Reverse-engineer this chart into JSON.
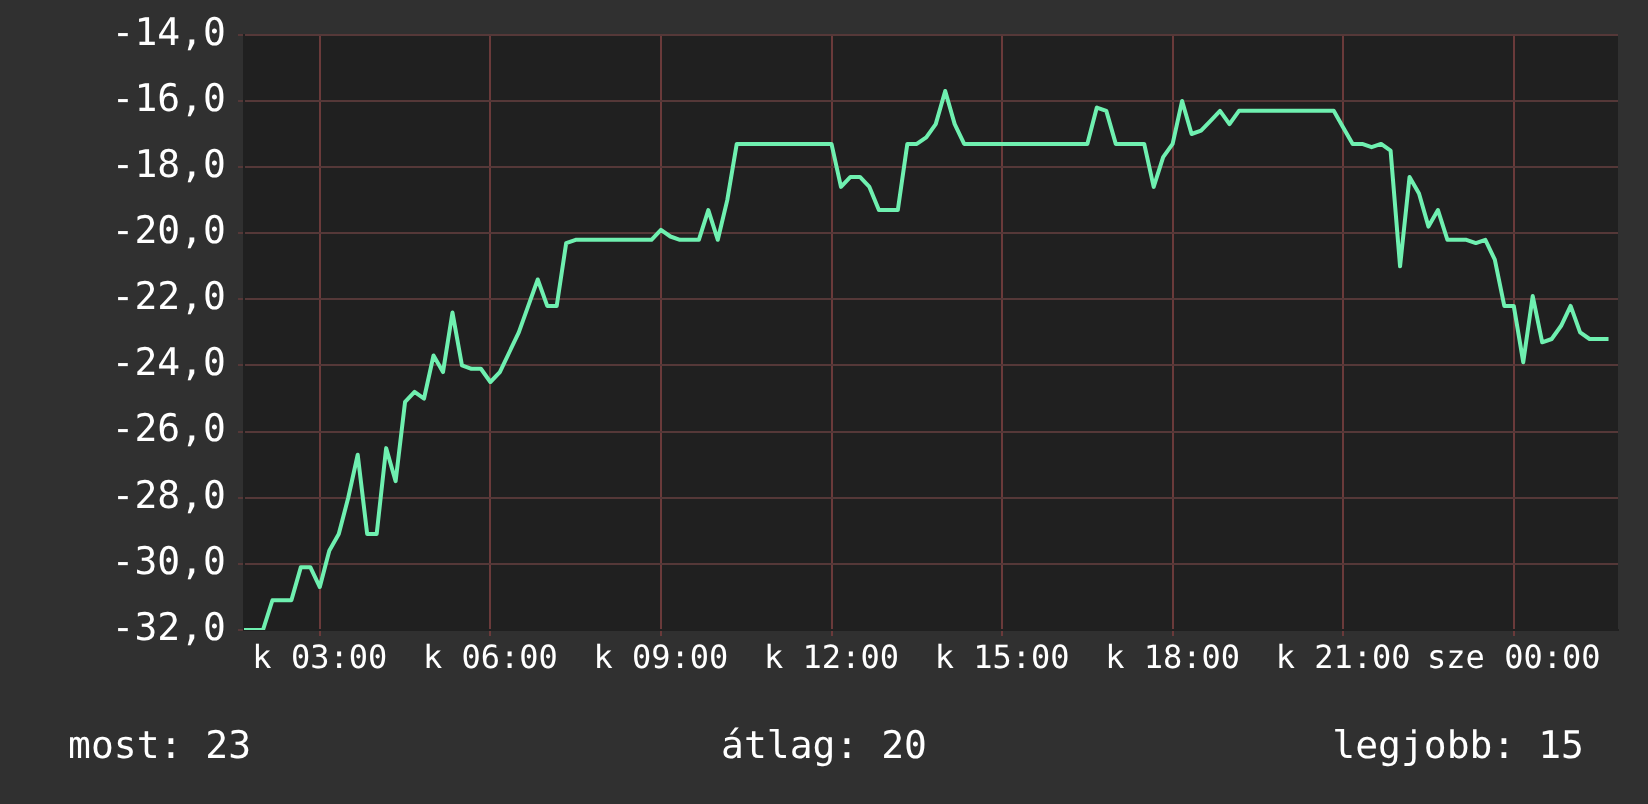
{
  "chart_data": {
    "type": "line",
    "categories": [
      null,
      null,
      null,
      null,
      null,
      null,
      null,
      null,
      "k 03:00",
      null,
      null,
      null,
      null,
      null,
      null,
      null,
      null,
      null,
      null,
      null,
      null,
      null,
      null,
      null,
      null,
      null,
      "k 06:00",
      null,
      null,
      null,
      null,
      null,
      null,
      null,
      null,
      null,
      null,
      null,
      null,
      null,
      null,
      null,
      null,
      null,
      "k 09:00",
      null,
      null,
      null,
      null,
      null,
      null,
      null,
      null,
      null,
      null,
      null,
      null,
      null,
      null,
      null,
      null,
      null,
      "k 12:00",
      null,
      null,
      null,
      null,
      null,
      null,
      null,
      null,
      null,
      null,
      null,
      null,
      null,
      null,
      null,
      null,
      null,
      "k 15:00",
      null,
      null,
      null,
      null,
      null,
      null,
      null,
      null,
      null,
      null,
      null,
      null,
      null,
      null,
      null,
      null,
      null,
      "k 18:00",
      null,
      null,
      null,
      null,
      null,
      null,
      null,
      null,
      null,
      null,
      null,
      null,
      null,
      null,
      null,
      null,
      null,
      "k 21:00",
      null,
      null,
      null,
      null,
      null,
      null,
      null,
      null,
      null,
      null,
      null,
      null,
      null,
      null,
      null,
      null,
      null,
      "sze 00:00",
      null,
      null,
      null,
      null,
      null,
      null,
      null,
      null,
      null,
      null,
      null
    ],
    "series": [
      {
        "color": "#6ff0b0",
        "values": [
          -32.0,
          -32.0,
          -32.0,
          -31.1,
          -31.1,
          -31.1,
          -30.1,
          -30.1,
          -30.7,
          -29.6,
          -29.1,
          -28.0,
          -26.7,
          -29.1,
          -29.1,
          -26.5,
          -27.5,
          -25.1,
          -24.8,
          -25.0,
          -23.7,
          -24.2,
          -22.4,
          -24.0,
          -24.1,
          -24.1,
          -24.5,
          -24.2,
          -23.6,
          -23.0,
          -22.2,
          -21.4,
          -22.2,
          -22.2,
          -20.3,
          -20.2,
          -20.2,
          -20.2,
          -20.2,
          -20.2,
          -20.2,
          -20.2,
          -20.2,
          -20.2,
          -19.9,
          -20.1,
          -20.2,
          -20.2,
          -20.2,
          -19.3,
          -20.2,
          -19.0,
          -17.3,
          -17.3,
          -17.3,
          -17.3,
          -17.3,
          -17.3,
          -17.3,
          -17.3,
          -17.3,
          -17.3,
          -17.3,
          -18.6,
          -18.3,
          -18.3,
          -18.6,
          -19.3,
          -19.3,
          -19.3,
          -17.3,
          -17.3,
          -17.1,
          -16.7,
          -15.7,
          -16.7,
          -17.3,
          -17.3,
          -17.3,
          -17.3,
          -17.3,
          -17.3,
          -17.3,
          -17.3,
          -17.3,
          -17.3,
          -17.3,
          -17.3,
          -17.3,
          -17.3,
          -16.2,
          -16.3,
          -17.3,
          -17.3,
          -17.3,
          -17.3,
          -18.6,
          -17.7,
          -17.3,
          -16.0,
          -17.0,
          -16.9,
          -16.6,
          -16.3,
          -16.7,
          -16.3,
          -16.3,
          -16.3,
          -16.3,
          -16.3,
          -16.3,
          -16.3,
          -16.3,
          -16.3,
          -16.3,
          -16.3,
          -16.8,
          -17.3,
          -17.3,
          -17.4,
          -17.3,
          -17.5,
          -21.0,
          -18.3,
          -18.8,
          -19.8,
          -19.3,
          -20.2,
          -20.2,
          -20.2,
          -20.3,
          -20.2,
          -20.8,
          -22.2,
          -22.2,
          -23.9,
          -21.9,
          -23.3,
          -23.2,
          -22.8,
          -22.2,
          -23.0,
          -23.2,
          -23.2,
          -23.2,
          null
        ]
      }
    ],
    "ylim": [
      -32,
      -14
    ],
    "yticks": [
      {
        "value": -32,
        "label": "-32,0"
      },
      {
        "value": -30,
        "label": "-30,0"
      },
      {
        "value": -28,
        "label": "-28,0"
      },
      {
        "value": -26,
        "label": "-26,0"
      },
      {
        "value": -24,
        "label": "-24,0"
      },
      {
        "value": -22,
        "label": "-22,0"
      },
      {
        "value": -20,
        "label": "-20,0"
      },
      {
        "value": -18,
        "label": "-18,0"
      },
      {
        "value": -16,
        "label": "-16,0"
      },
      {
        "value": -14,
        "label": "-14,0"
      }
    ],
    "grid": true,
    "marker": "none",
    "line_style": "solid",
    "legend": false,
    "annotations": [
      "most: 23",
      "átlag: 20",
      "legjobb: 15"
    ]
  }
}
